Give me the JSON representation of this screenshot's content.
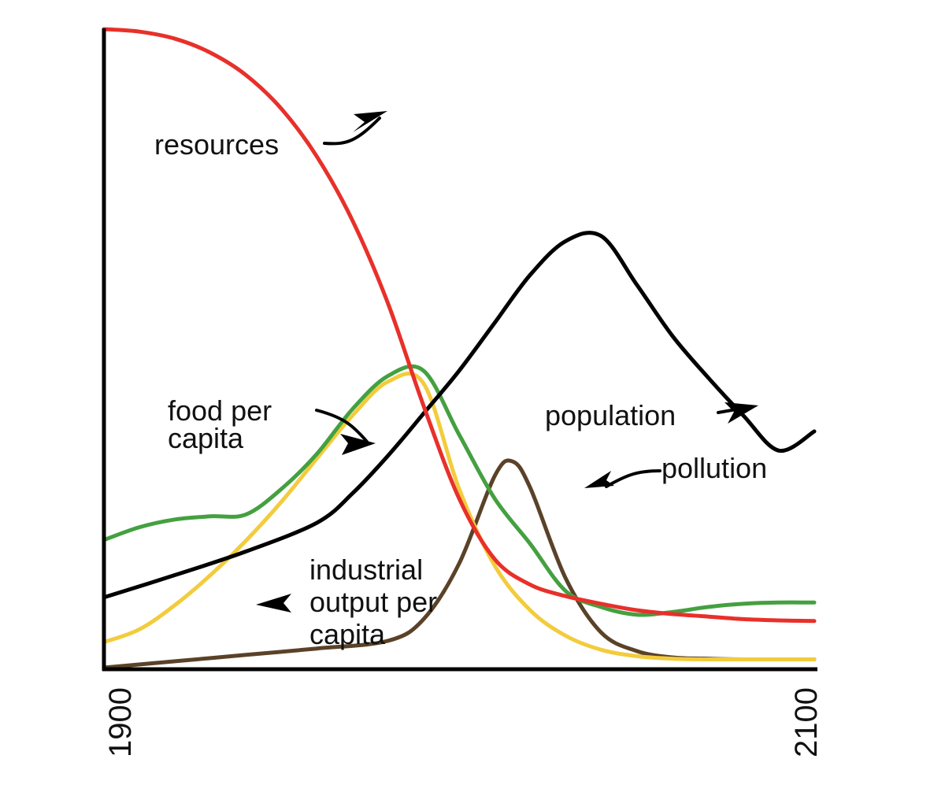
{
  "chart_data": {
    "type": "line",
    "title": "",
    "xlabel": "",
    "ylabel": "",
    "xlim": [
      1900,
      2100
    ],
    "ylim": [
      0,
      100
    ],
    "ticks": {
      "x_start": "1900",
      "x_end": "2100"
    },
    "grid": false,
    "legend": "none (series labelled inline with arrows)",
    "series": [
      {
        "name": "resources",
        "color": "#e8302a",
        "x": [
          1900,
          1910,
          1920,
          1930,
          1940,
          1950,
          1960,
          1970,
          1980,
          1990,
          2000,
          2010,
          2020,
          2030,
          2040,
          2050,
          2060,
          2070,
          2080,
          2090,
          2100
        ],
        "y": [
          100,
          99.6,
          98.5,
          96.3,
          92.8,
          87.5,
          80,
          70,
          57,
          41,
          26.5,
          17,
          13,
          11.2,
          10,
          9,
          8.4,
          8,
          7.6,
          7.4,
          7.3
        ]
      },
      {
        "name": "population",
        "color": "#000000",
        "x": [
          1900,
          1920,
          1940,
          1960,
          1970,
          1980,
          1990,
          2000,
          2010,
          2020,
          2030,
          2040,
          2050,
          2060,
          2070,
          2080,
          2090,
          2100
        ],
        "y": [
          11,
          14.5,
          18.2,
          22.7,
          27.3,
          33.2,
          39.8,
          46.5,
          54,
          61.5,
          66.8,
          67.6,
          60,
          52,
          45.5,
          39.5,
          34,
          37
        ]
      },
      {
        "name": "food per capita",
        "color": "#44a040",
        "x": [
          1900,
          1910,
          1920,
          1930,
          1940,
          1950,
          1960,
          1970,
          1980,
          1990,
          2000,
          2010,
          2020,
          2030,
          2040,
          2050,
          2060,
          2070,
          2080,
          2090,
          2100
        ],
        "y": [
          20,
          22,
          23.2,
          23.7,
          24,
          28,
          33.5,
          40.5,
          45.7,
          46.5,
          36.5,
          26.5,
          19.4,
          12,
          9.5,
          8.3,
          8.7,
          9.5,
          10,
          10.2,
          10.2
        ]
      },
      {
        "name": "industrial output per capita",
        "color": "#f2cc3c",
        "x": [
          1900,
          1910,
          1920,
          1930,
          1940,
          1950,
          1960,
          1970,
          1980,
          1990,
          2000,
          2010,
          2020,
          2030,
          2040,
          2050,
          2060,
          2070,
          2080,
          2090,
          2100
        ],
        "y": [
          4,
          6,
          9.8,
          14.5,
          19.9,
          26,
          32.8,
          39.5,
          44.8,
          44.5,
          28,
          16,
          9,
          5,
          2.8,
          1.8,
          1.4,
          1.3,
          1.3,
          1.3,
          1.3
        ]
      },
      {
        "name": "pollution",
        "color": "#5a4228",
        "x": [
          1900,
          1920,
          1940,
          1960,
          1980,
          1990,
          2000,
          2010,
          2015,
          2020,
          2030,
          2040,
          2050,
          2060,
          2070,
          2080,
          2090,
          2100
        ],
        "y": [
          0,
          1,
          2,
          3,
          4.2,
          7.6,
          16.3,
          30,
          32.3,
          28.2,
          14,
          5.5,
          2.6,
          1.6,
          1.4,
          1.3,
          1.3,
          1.3
        ]
      }
    ],
    "annotations": [
      {
        "series": "resources",
        "lines": [
          "resources"
        ]
      },
      {
        "series": "food per capita",
        "lines": [
          "food per",
          "capita"
        ]
      },
      {
        "series": "population",
        "lines": [
          "population"
        ]
      },
      {
        "series": "pollution",
        "lines": [
          "pollution"
        ]
      },
      {
        "series": "industrial output per capita",
        "lines": [
          "industrial",
          "output per",
          "capita"
        ]
      }
    ]
  }
}
